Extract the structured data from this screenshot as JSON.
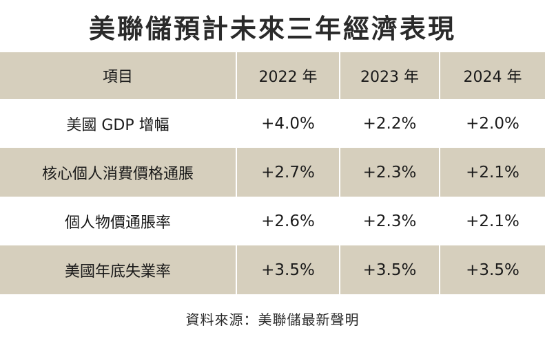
{
  "title": "美聯儲預計未來三年經濟表現",
  "table": {
    "headers": [
      "項目",
      "2022 年",
      "2023 年",
      "2024 年"
    ],
    "rows": [
      {
        "label": "美國 GDP 增幅",
        "values": [
          "+4.0%",
          "+2.2%",
          "+2.0%"
        ]
      },
      {
        "label": "核心個人消費價格通脹",
        "values": [
          "+2.7%",
          "+2.3%",
          "+2.1%"
        ]
      },
      {
        "label": "個人物價通脹率",
        "values": [
          "+2.6%",
          "+2.3%",
          "+2.1%"
        ]
      },
      {
        "label": "美國年底失業率",
        "values": [
          "+3.5%",
          "+3.5%",
          "+3.5%"
        ]
      }
    ]
  },
  "source": "資料來源：美聯儲最新聲明",
  "colors": {
    "header_band": "#d6cfbd",
    "background": "#ffffff"
  }
}
